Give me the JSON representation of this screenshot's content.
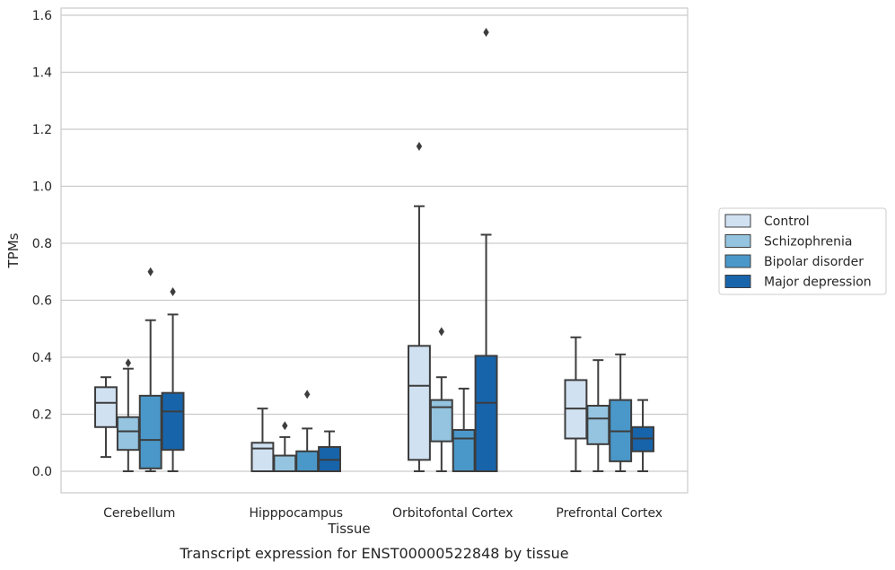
{
  "chart_data": {
    "type": "box",
    "xlabel": "Tissue",
    "ylabel": "TPMs",
    "caption": "Transcript expression for ENST00000522848 by tissue",
    "ylim": [
      -0.075,
      1.62
    ],
    "yticks": [
      0.0,
      0.2,
      0.4,
      0.6,
      0.8,
      1.0,
      1.2,
      1.4,
      1.6
    ],
    "ytick_labels": [
      "0.0",
      "0.2",
      "0.4",
      "0.6",
      "0.8",
      "1.0",
      "1.2",
      "1.4",
      "1.6"
    ],
    "grid": "horizontal",
    "legend_position": "right",
    "categories": [
      "Cerebellum",
      "Hipppocampus",
      "Orbitofontal Cortex",
      "Prefrontal Cortex"
    ],
    "series": [
      {
        "name": "Control",
        "color": "#d0e1f2",
        "boxes": [
          {
            "whislo": 0.05,
            "q1": 0.155,
            "med": 0.24,
            "q3": 0.295,
            "whishi": 0.33,
            "fliers": []
          },
          {
            "whislo": 0.0,
            "q1": 0.0,
            "med": 0.08,
            "q3": 0.1,
            "whishi": 0.22,
            "fliers": []
          },
          {
            "whislo": 0.0,
            "q1": 0.04,
            "med": 0.3,
            "q3": 0.44,
            "whishi": 0.93,
            "fliers": [
              1.14
            ]
          },
          {
            "whislo": 0.0,
            "q1": 0.115,
            "med": 0.22,
            "q3": 0.32,
            "whishi": 0.47,
            "fliers": []
          }
        ]
      },
      {
        "name": "Schizophrenia",
        "color": "#94c4df",
        "boxes": [
          {
            "whislo": 0.0,
            "q1": 0.075,
            "med": 0.14,
            "q3": 0.19,
            "whishi": 0.36,
            "fliers": [
              0.38
            ]
          },
          {
            "whislo": 0.0,
            "q1": 0.0,
            "med": 0.0,
            "q3": 0.055,
            "whishi": 0.12,
            "fliers": [
              0.16
            ]
          },
          {
            "whislo": 0.0,
            "q1": 0.105,
            "med": 0.225,
            "q3": 0.25,
            "whishi": 0.33,
            "fliers": [
              0.49
            ]
          },
          {
            "whislo": 0.0,
            "q1": 0.095,
            "med": 0.185,
            "q3": 0.23,
            "whishi": 0.39,
            "fliers": []
          }
        ]
      },
      {
        "name": "Bipolar disorder",
        "color": "#4a98c9",
        "boxes": [
          {
            "whislo": 0.0,
            "q1": 0.01,
            "med": 0.11,
            "q3": 0.265,
            "whishi": 0.53,
            "fliers": [
              0.7
            ]
          },
          {
            "whislo": 0.0,
            "q1": 0.0,
            "med": 0.0,
            "q3": 0.07,
            "whishi": 0.15,
            "fliers": [
              0.27
            ]
          },
          {
            "whislo": 0.0,
            "q1": 0.0,
            "med": 0.115,
            "q3": 0.145,
            "whishi": 0.29,
            "fliers": []
          },
          {
            "whislo": 0.0,
            "q1": 0.035,
            "med": 0.14,
            "q3": 0.25,
            "whishi": 0.41,
            "fliers": []
          }
        ]
      },
      {
        "name": "Major depression",
        "color": "#1764ab",
        "boxes": [
          {
            "whislo": 0.0,
            "q1": 0.075,
            "med": 0.21,
            "q3": 0.275,
            "whishi": 0.55,
            "fliers": [
              0.63
            ]
          },
          {
            "whislo": 0.0,
            "q1": 0.0,
            "med": 0.04,
            "q3": 0.085,
            "whishi": 0.14,
            "fliers": []
          },
          {
            "whislo": 0.0,
            "q1": 0.0,
            "med": 0.24,
            "q3": 0.405,
            "whishi": 0.83,
            "fliers": [
              1.54
            ]
          },
          {
            "whislo": 0.0,
            "q1": 0.07,
            "med": 0.115,
            "q3": 0.155,
            "whishi": 0.25,
            "fliers": []
          }
        ]
      }
    ]
  }
}
